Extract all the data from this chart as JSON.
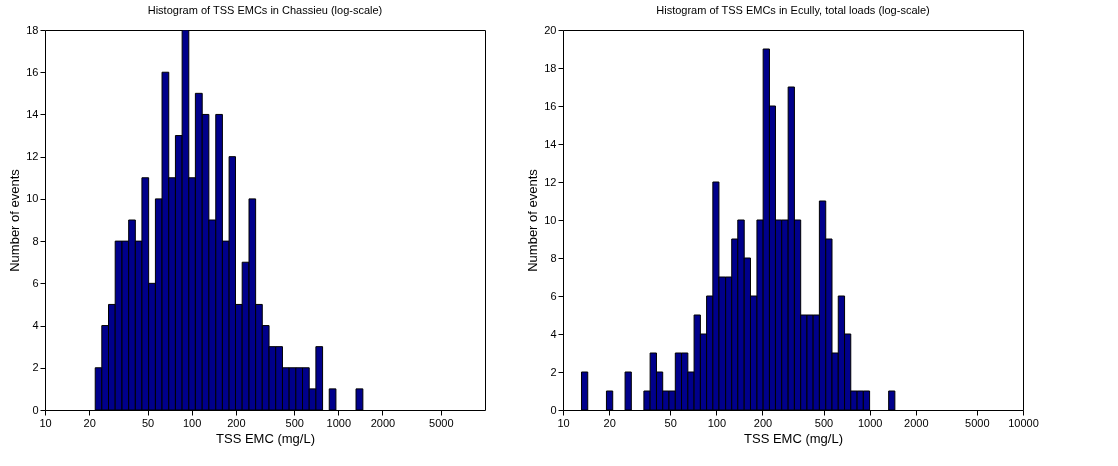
{
  "chart_data": [
    {
      "type": "histogram",
      "title": "Histogram of TSS EMCs in Chassieu (log-scale)",
      "xlabel": "TSS EMC (mg/L)",
      "ylabel": "Number of events",
      "color": "#00008b",
      "log": "x",
      "bins": [
        22.0,
        24.4,
        27.1,
        30.1,
        33.5,
        37.2,
        41.3,
        45.8,
        50.9,
        56.6,
        62.8,
        69.8,
        77.5,
        86.1,
        95.6,
        106,
        118,
        131,
        146,
        162,
        180,
        199,
        221,
        246,
        273,
        303,
        337,
        374,
        416,
        462,
        513,
        570,
        633,
        703,
        781,
        867,
        963,
        1070,
        1190,
        1320,
        1470
      ],
      "values": [
        2,
        4,
        5,
        8,
        8,
        9,
        8,
        11,
        6,
        10,
        16,
        11,
        13,
        18,
        11,
        15,
        14,
        9,
        14,
        8,
        12,
        5,
        7,
        10,
        5,
        4,
        3,
        3,
        2,
        2,
        2,
        2,
        1,
        3,
        0,
        1,
        0,
        0,
        0,
        1
      ],
      "xlim": [
        10,
        10000
      ],
      "xticks": [
        10,
        20,
        50,
        100,
        200,
        500,
        1000,
        2000,
        5000
      ],
      "ylim": [
        0,
        18
      ],
      "yticks": [
        0,
        2,
        4,
        6,
        8,
        10,
        12,
        14,
        16,
        18
      ]
    },
    {
      "type": "histogram",
      "title": "Histogram of TSS EMCs in Ecully, total loads (log-scale)",
      "xlabel": "TSS EMC (mg/L)",
      "ylabel": "Number of events",
      "color": "#00008b",
      "log": "x",
      "bins": [
        13.2,
        14.5,
        15.9,
        17.4,
        19.2,
        21.1,
        23.1,
        25.4,
        27.9,
        30.7,
        33.7,
        37.0,
        40.7,
        44.7,
        49.1,
        54.0,
        59.3,
        65.2,
        71.6,
        78.7,
        86.4,
        94.9,
        104,
        115,
        126,
        138,
        152,
        167,
        184,
        202,
        222,
        243,
        267,
        294,
        323,
        355,
        390,
        428,
        470,
        517,
        568,
        624,
        686,
        753,
        828,
        909,
        999,
        1100,
        1210,
        1330,
        1460
      ],
      "values": [
        2,
        0,
        0,
        0,
        1,
        0,
        0,
        2,
        0,
        0,
        1,
        3,
        2,
        1,
        1,
        3,
        3,
        2,
        5,
        4,
        6,
        12,
        7,
        7,
        9,
        10,
        8,
        6,
        10,
        19,
        16,
        10,
        10,
        17,
        10,
        5,
        5,
        5,
        11,
        9,
        3,
        6,
        4,
        1,
        1,
        1,
        0,
        0,
        0,
        1
      ],
      "xlim": [
        10,
        10000
      ],
      "xticks": [
        10,
        20,
        50,
        100,
        200,
        500,
        1000,
        2000,
        5000,
        10000
      ],
      "ylim": [
        0,
        20
      ],
      "yticks": [
        0,
        2,
        4,
        6,
        8,
        10,
        12,
        14,
        16,
        18,
        20
      ]
    }
  ]
}
